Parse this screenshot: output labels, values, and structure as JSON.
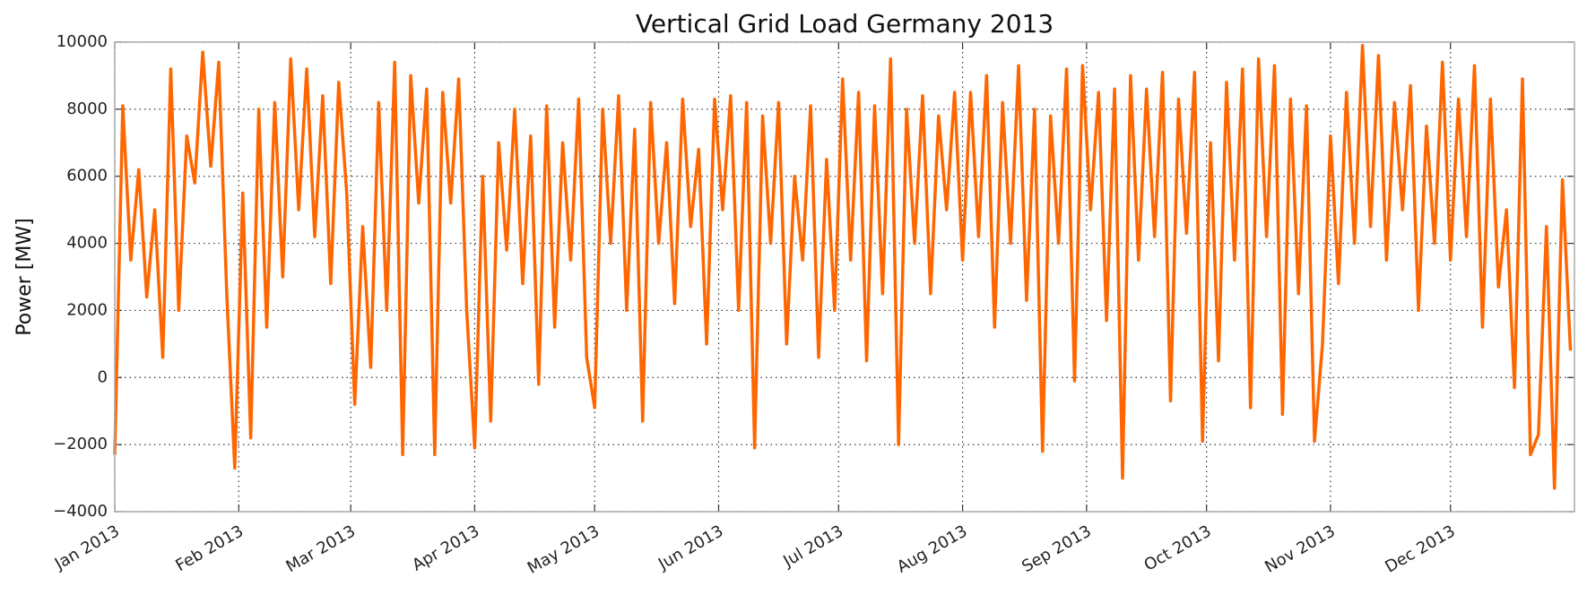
{
  "chart_data": {
    "type": "line",
    "title": "Vertical Grid Load Germany 2013",
    "y_label": "Power [MW]",
    "xlim": [
      0,
      365
    ],
    "ylim": [
      -4000,
      10000
    ],
    "xticks": [
      {
        "value": 0,
        "label": "Jan 2013"
      },
      {
        "value": 31,
        "label": "Feb 2013"
      },
      {
        "value": 59,
        "label": "Mar 2013"
      },
      {
        "value": 90,
        "label": "Apr 2013"
      },
      {
        "value": 120,
        "label": "May 2013"
      },
      {
        "value": 151,
        "label": "Jun 2013"
      },
      {
        "value": 181,
        "label": "Jul 2013"
      },
      {
        "value": 212,
        "label": "Aug 2013"
      },
      {
        "value": 243,
        "label": "Sep 2013"
      },
      {
        "value": 273,
        "label": "Oct 2013"
      },
      {
        "value": 304,
        "label": "Nov 2013"
      },
      {
        "value": 334,
        "label": "Dec 2013"
      }
    ],
    "yticks": [
      {
        "value": -4000,
        "label": "−4000"
      },
      {
        "value": -2000,
        "label": "−2000"
      },
      0,
      2000,
      4000,
      6000,
      8000,
      10000
    ],
    "grid": true,
    "color": "#ff6600",
    "x": [
      0,
      2,
      4,
      6,
      8,
      10,
      12,
      14,
      16,
      18,
      20,
      22,
      24,
      26,
      28,
      30,
      32,
      34,
      36,
      38,
      40,
      42,
      44,
      46,
      48,
      50,
      52,
      54,
      56,
      58,
      60,
      62,
      64,
      66,
      68,
      70,
      72,
      74,
      76,
      78,
      80,
      82,
      84,
      86,
      88,
      90,
      92,
      94,
      96,
      98,
      100,
      102,
      104,
      106,
      108,
      110,
      112,
      114,
      116,
      118,
      120,
      122,
      124,
      126,
      128,
      130,
      132,
      134,
      136,
      138,
      140,
      142,
      144,
      146,
      148,
      150,
      152,
      154,
      156,
      158,
      160,
      162,
      164,
      166,
      168,
      170,
      172,
      174,
      176,
      178,
      180,
      182,
      184,
      186,
      188,
      190,
      192,
      194,
      196,
      198,
      200,
      202,
      204,
      206,
      208,
      210,
      212,
      214,
      216,
      218,
      220,
      222,
      224,
      226,
      228,
      230,
      232,
      234,
      236,
      238,
      240,
      242,
      244,
      246,
      248,
      250,
      252,
      254,
      256,
      258,
      260,
      262,
      264,
      266,
      268,
      270,
      272,
      274,
      276,
      278,
      280,
      282,
      284,
      286,
      288,
      290,
      292,
      294,
      296,
      298,
      300,
      302,
      304,
      306,
      308,
      310,
      312,
      314,
      316,
      318,
      320,
      322,
      324,
      326,
      328,
      330,
      332,
      334,
      336,
      338,
      340,
      342,
      344,
      346,
      348,
      350,
      352,
      354,
      356,
      358,
      360,
      362,
      364
    ],
    "values": [
      -2300,
      8100,
      3500,
      6200,
      2400,
      5000,
      600,
      9200,
      2000,
      7200,
      5800,
      9700,
      6300,
      9400,
      2500,
      -2700,
      5500,
      -1800,
      8000,
      1500,
      8200,
      3000,
      9500,
      5000,
      9200,
      4200,
      8400,
      2800,
      8800,
      5500,
      -800,
      4500,
      300,
      8200,
      2000,
      9400,
      -2300,
      9000,
      5200,
      8600,
      -2300,
      8500,
      5200,
      8900,
      2000,
      -2100,
      6000,
      -1300,
      7000,
      3800,
      8000,
      2800,
      7200,
      -200,
      8100,
      1500,
      7000,
      3500,
      8300,
      600,
      -900,
      8000,
      4000,
      8400,
      2000,
      7400,
      -1300,
      8200,
      4000,
      7000,
      2200,
      8300,
      4500,
      6800,
      1000,
      8300,
      5000,
      8400,
      2000,
      8200,
      -2100,
      7800,
      4000,
      8200,
      1000,
      6000,
      3500,
      8100,
      600,
      6500,
      2000,
      8900,
      3500,
      8500,
      500,
      8100,
      2500,
      9500,
      -2000,
      8000,
      4000,
      8400,
      2500,
      7800,
      5000,
      8500,
      3500,
      8500,
      4200,
      9000,
      1500,
      8200,
      4000,
      9300,
      2300,
      8000,
      -2200,
      7800,
      4000,
      9200,
      -100,
      9300,
      5000,
      8500,
      1700,
      8600,
      -3000,
      9000,
      3500,
      8600,
      4200,
      9100,
      -700,
      8300,
      4300,
      9100,
      -1900,
      7000,
      500,
      8800,
      3500,
      9200,
      -900,
      9500,
      4200,
      9300,
      -1100,
      8300,
      2500,
      8100,
      -1900,
      1000,
      7200,
      2800,
      8500,
      4000,
      9900,
      4500,
      9600,
      3500,
      8200,
      5000,
      8700,
      2000,
      7500,
      4000,
      9400,
      3500,
      8300,
      4200,
      9300,
      1500,
      8300,
      2700,
      5000,
      -300,
      8900,
      -2300,
      -1700,
      4500,
      -3300,
      5900,
      800
    ]
  }
}
